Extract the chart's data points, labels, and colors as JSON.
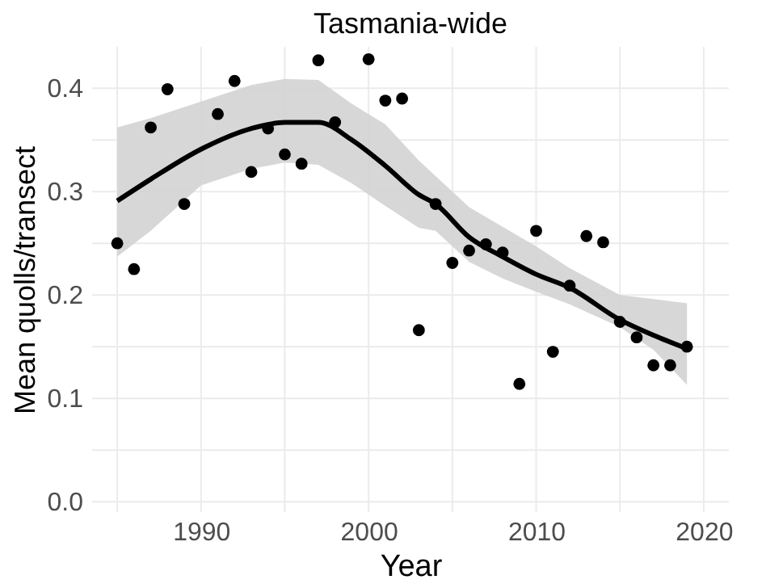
{
  "chart_data": {
    "type": "scatter",
    "title": "Tasmania-wide",
    "xlabel": "Year",
    "ylabel": "Mean quolls/transect",
    "xlim": [
      1983.5,
      2021.5
    ],
    "ylim": [
      -0.01,
      0.44
    ],
    "xticks": [
      {
        "value": 1985,
        "label": null
      },
      1990,
      {
        "value": 1995,
        "label": null
      },
      2000,
      {
        "value": 2005,
        "label": null
      },
      2010,
      {
        "value": 2015,
        "label": null
      },
      2020
    ],
    "yticks": [
      {
        "value": 0,
        "label": "0.0"
      },
      {
        "value": 0.05,
        "label": null
      },
      0.1,
      {
        "value": 0.15,
        "label": null
      },
      0.2,
      {
        "value": 0.25,
        "label": null
      },
      0.3,
      {
        "value": 0.35,
        "label": null
      },
      0.4
    ],
    "grid": true,
    "series": [
      {
        "type": "line",
        "color": "#000000",
        "marker": "none",
        "x": [
          1985,
          1987,
          1990,
          1993,
          1995,
          1997,
          1999,
          2001,
          2003,
          2004,
          2006,
          2008,
          2010,
          2012,
          2015,
          2017,
          2019
        ],
        "values": [
          0.291,
          0.312,
          0.341,
          0.361,
          0.367,
          0.367,
          0.35,
          0.325,
          0.297,
          0.288,
          0.256,
          0.237,
          0.22,
          0.207,
          0.176,
          0.161,
          0.148
        ],
        "lower": [
          0.237,
          0.262,
          0.306,
          0.322,
          0.328,
          0.326,
          0.308,
          0.286,
          0.265,
          0.262,
          0.232,
          0.216,
          0.203,
          0.191,
          0.169,
          0.147,
          0.113
        ],
        "upper": [
          0.362,
          0.371,
          0.387,
          0.403,
          0.409,
          0.408,
          0.385,
          0.365,
          0.33,
          0.315,
          0.285,
          0.266,
          0.247,
          0.226,
          0.2,
          0.196,
          0.192
        ]
      },
      {
        "color": "#000000",
        "marker": "circle",
        "x": [
          1985,
          1986,
          1987,
          1988,
          1989,
          1991,
          1992,
          1993,
          1994,
          1995,
          1996,
          1997,
          1998,
          2000,
          2001,
          2002,
          2003,
          2004,
          2005,
          2006,
          2007,
          2008,
          2009,
          2010,
          2011,
          2012,
          2013,
          2014,
          2015,
          2016,
          2017,
          2018,
          2019
        ],
        "values": [
          0.25,
          0.225,
          0.362,
          0.399,
          0.288,
          0.375,
          0.407,
          0.319,
          0.361,
          0.336,
          0.327,
          0.427,
          0.367,
          0.428,
          0.388,
          0.39,
          0.166,
          0.288,
          0.231,
          0.243,
          0.249,
          0.241,
          0.114,
          0.262,
          0.145,
          0.209,
          0.257,
          0.251,
          0.174,
          0.159,
          0.132,
          0.132,
          0.15
        ]
      }
    ]
  }
}
